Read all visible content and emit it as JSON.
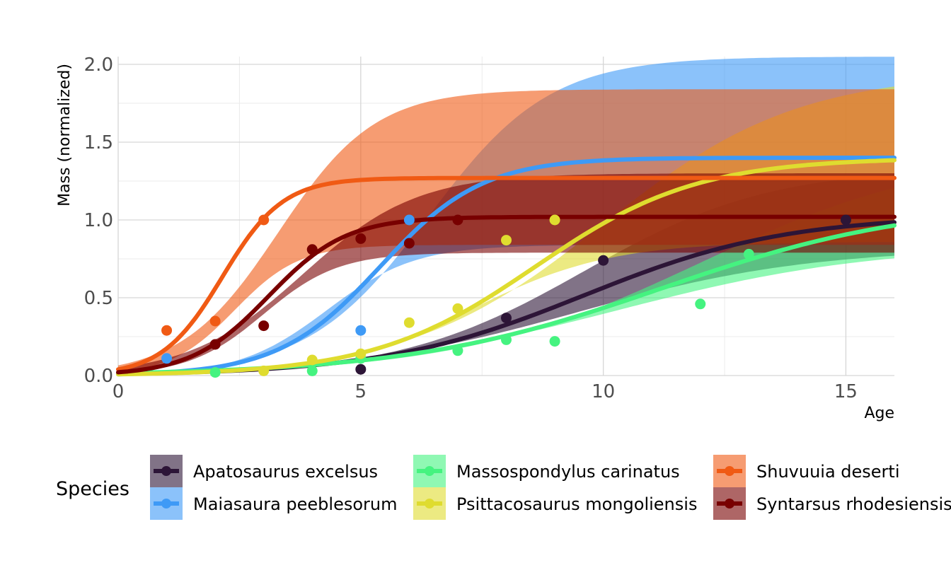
{
  "chart_data": {
    "type": "line",
    "xlabel": "Age",
    "ylabel": "Mass (normalized)",
    "xlim": [
      0,
      16
    ],
    "ylim": [
      0,
      2.05
    ],
    "xticks": [
      0,
      5,
      10,
      15
    ],
    "xtick_labels": [
      "0",
      "5",
      "10",
      "15"
    ],
    "yticks": [
      0,
      0.5,
      1,
      1.5,
      2
    ],
    "ytick_labels": [
      "0.0",
      "0.5",
      "1.0",
      "1.5",
      "2.0"
    ],
    "grid": true,
    "legend_title": "Species",
    "legend_position": "bottom",
    "series": [
      {
        "name": "Apatosaurus excelsus",
        "color": "#2d1537",
        "points": [
          [
            5,
            0.04
          ],
          [
            8,
            0.37
          ],
          [
            10,
            0.74
          ],
          [
            15,
            1.0
          ]
        ],
        "curve": {
          "asymptote": 1.03,
          "k": 0.48,
          "x0": 9.6
        },
        "band": {
          "lower": {
            "asymptote": 0.82,
            "k": 0.42,
            "x0": 9.5
          },
          "upper": {
            "asymptote": 1.34,
            "k": 0.52,
            "x0": 9.6
          }
        }
      },
      {
        "name": "Maiasaura peeblesorum",
        "color": "#3e9af6",
        "points": [
          [
            1,
            0.11
          ],
          [
            5,
            0.29
          ],
          [
            6,
            1.0
          ]
        ],
        "curve": {
          "asymptote": 1.4,
          "k": 0.95,
          "x0": 5.4
        },
        "band": {
          "lower": {
            "asymptote": 0.84,
            "k": 1.1,
            "x0": 4.3
          },
          "upper": {
            "asymptote": 2.05,
            "k": 0.8,
            "x0": 6.4
          }
        }
      },
      {
        "name": "Massospondylus carinatus",
        "color": "#45f380",
        "points": [
          [
            2,
            0.02
          ],
          [
            4,
            0.03
          ],
          [
            5,
            0.11
          ],
          [
            7,
            0.16
          ],
          [
            8,
            0.23
          ],
          [
            9,
            0.22
          ],
          [
            12,
            0.46
          ],
          [
            13,
            0.78
          ]
        ],
        "curve": {
          "asymptote": 1.12,
          "k": 0.38,
          "x0": 11.2
        },
        "band": {
          "lower": {
            "asymptote": 0.84,
            "k": 0.38,
            "x0": 10.3
          },
          "upper": {
            "asymptote": 1.45,
            "k": 0.4,
            "x0": 12.0
          }
        }
      },
      {
        "name": "Psittacosaurus mongoliensis",
        "color": "#dfdc2f",
        "points": [
          [
            3,
            0.03
          ],
          [
            4,
            0.1
          ],
          [
            5,
            0.14
          ],
          [
            6,
            0.34
          ],
          [
            7,
            0.43
          ],
          [
            8,
            0.87
          ],
          [
            9,
            1.0
          ]
        ],
        "curve": {
          "asymptote": 1.4,
          "k": 0.6,
          "x0": 8.6
        },
        "band": {
          "lower": {
            "asymptote": 0.86,
            "k": 0.7,
            "x0": 7.3
          },
          "upper": {
            "asymptote": 1.95,
            "k": 0.5,
            "x0": 10.0
          }
        }
      },
      {
        "name": "Shuvuuia deserti",
        "color": "#f05a14",
        "points": [
          [
            1,
            0.29
          ],
          [
            2,
            0.35
          ],
          [
            3,
            1.0
          ]
        ],
        "curve": {
          "asymptote": 1.27,
          "k": 1.6,
          "x0": 2.15
        },
        "band": {
          "lower": {
            "asymptote": 0.84,
            "k": 1.5,
            "x0": 2.4
          },
          "upper": {
            "asymptote": 1.84,
            "k": 1.0,
            "x0": 3.3
          }
        }
      },
      {
        "name": "Syntarsus rhodesiensis",
        "color": "#780000",
        "points": [
          [
            2,
            0.2
          ],
          [
            3,
            0.32
          ],
          [
            4,
            0.81
          ],
          [
            5,
            0.88
          ],
          [
            6,
            0.85
          ],
          [
            7,
            1.0
          ]
        ],
        "curve": {
          "asymptote": 1.02,
          "k": 1.25,
          "x0": 3.1
        },
        "band": {
          "lower": {
            "asymptote": 0.79,
            "k": 1.3,
            "x0": 3.0
          },
          "upper": {
            "asymptote": 1.3,
            "k": 0.85,
            "x0": 3.8
          }
        }
      }
    ]
  }
}
